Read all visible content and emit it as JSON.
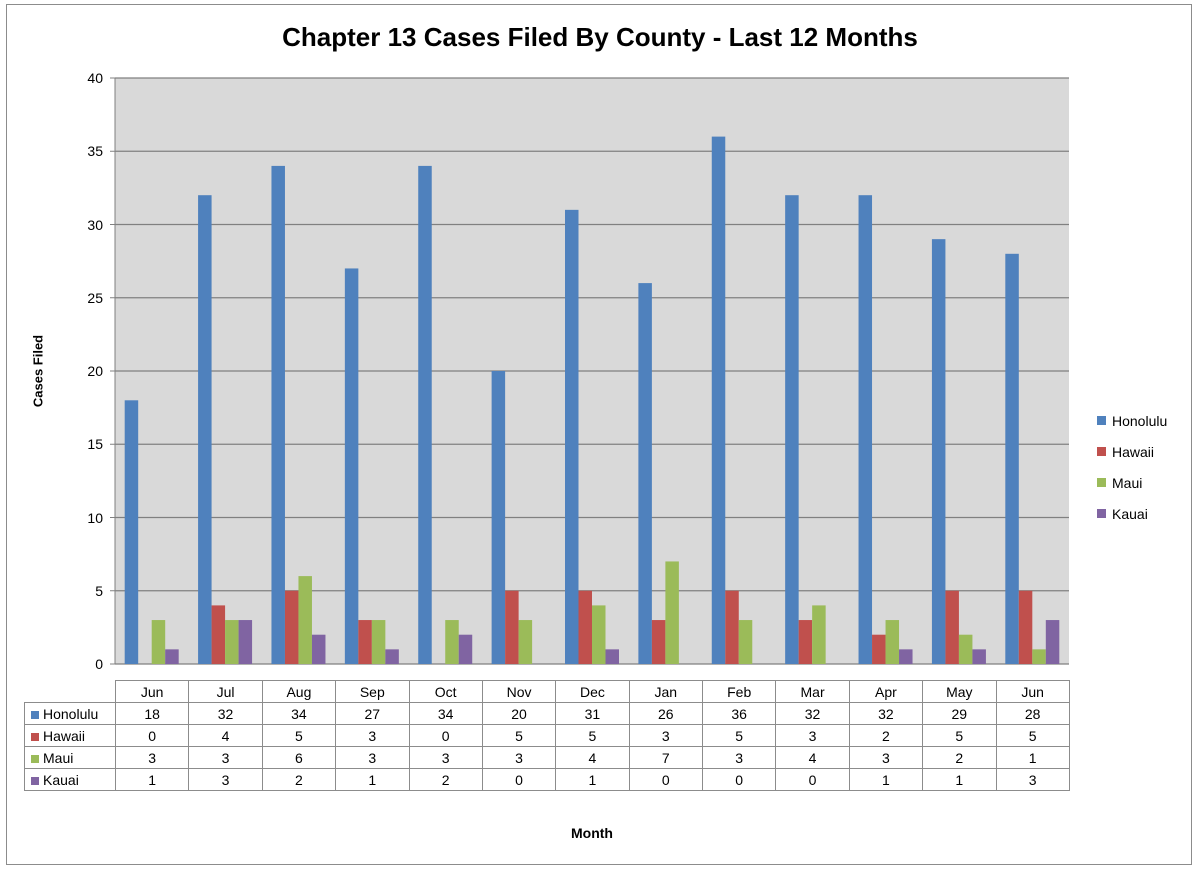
{
  "chart_data": {
    "type": "bar",
    "title": "Chapter 13 Cases Filed By County - Last 12 Months",
    "xlabel": "Month",
    "ylabel": "Cases Filed",
    "ylim": [
      0,
      40
    ],
    "yticks": [
      0,
      5,
      10,
      15,
      20,
      25,
      30,
      35,
      40
    ],
    "grid": true,
    "legend": "right",
    "categories": [
      "Jun",
      "Jul",
      "Aug",
      "Sep",
      "Oct",
      "Nov",
      "Dec",
      "Jan",
      "Feb",
      "Mar",
      "Apr",
      "May",
      "Jun"
    ],
    "series": [
      {
        "name": "Honolulu",
        "color": "#4f81bd",
        "values": [
          18,
          32,
          34,
          27,
          34,
          20,
          31,
          26,
          36,
          32,
          32,
          29,
          28
        ]
      },
      {
        "name": "Hawaii",
        "color": "#c0504d",
        "values": [
          0,
          4,
          5,
          3,
          0,
          5,
          5,
          3,
          5,
          3,
          2,
          5,
          5
        ]
      },
      {
        "name": "Maui",
        "color": "#9bbb59",
        "values": [
          3,
          3,
          6,
          3,
          3,
          3,
          4,
          7,
          3,
          4,
          3,
          2,
          1
        ]
      },
      {
        "name": "Kauai",
        "color": "#8064a2",
        "values": [
          1,
          3,
          2,
          1,
          2,
          0,
          1,
          0,
          0,
          0,
          1,
          1,
          3
        ]
      }
    ],
    "plot_background": "#d9d9d9",
    "gridline_color": "#808080"
  }
}
